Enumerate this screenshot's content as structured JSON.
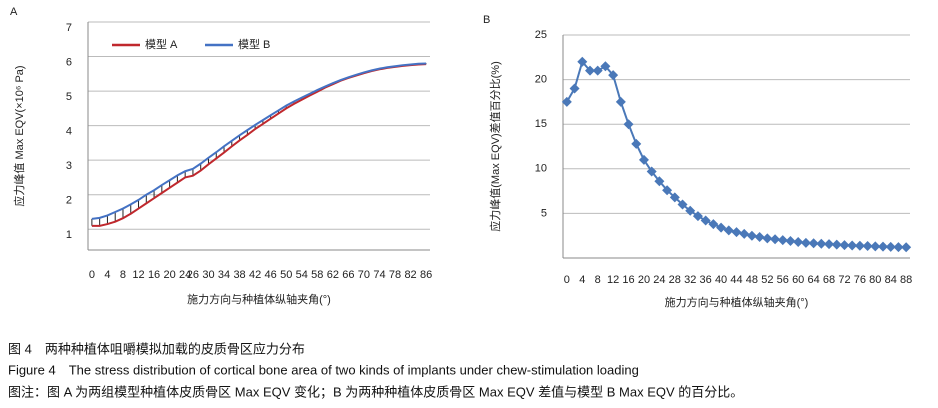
{
  "chart_data": [
    {
      "type": "line",
      "label": "A",
      "x_label": "施力方向与种植体纵轴夹角(°)",
      "y_label": "应力峰值 Max EQV(×10⁶ Pa)",
      "categories": [
        "0",
        null,
        "4",
        null,
        "8",
        null,
        "12",
        null,
        "16",
        null,
        "20",
        null,
        "24",
        "26",
        null,
        "30",
        null,
        "34",
        null,
        "38",
        null,
        "42",
        null,
        "46",
        null,
        "50",
        null,
        "54",
        null,
        "58",
        null,
        "62",
        null,
        "66",
        null,
        "70",
        null,
        "74",
        null,
        "78",
        null,
        "82",
        null,
        "86"
      ],
      "series": [
        {
          "name": "模型 A",
          "color": "#c0282d",
          "values": [
            1.1,
            1.1,
            1.15,
            1.22,
            1.32,
            1.45,
            1.6,
            1.75,
            1.9,
            2.05,
            2.2,
            2.35,
            2.5,
            2.55,
            2.7,
            2.88,
            3.05,
            3.22,
            3.4,
            3.57,
            3.73,
            3.9,
            4.05,
            4.2,
            4.35,
            4.5,
            4.63,
            4.75,
            4.87,
            4.98,
            5.1,
            5.2,
            5.3,
            5.38,
            5.45,
            5.52,
            5.58,
            5.63,
            5.67,
            5.7,
            5.73,
            5.75,
            5.77,
            5.78
          ]
        },
        {
          "name": "模型 B",
          "color": "#4472c4",
          "values": [
            1.3,
            1.33,
            1.4,
            1.5,
            1.6,
            1.72,
            1.85,
            2.0,
            2.13,
            2.28,
            2.42,
            2.56,
            2.68,
            2.75,
            2.9,
            3.07,
            3.23,
            3.4,
            3.56,
            3.72,
            3.87,
            4.02,
            4.16,
            4.3,
            4.44,
            4.58,
            4.7,
            4.81,
            4.92,
            5.03,
            5.13,
            5.23,
            5.32,
            5.4,
            5.47,
            5.54,
            5.6,
            5.65,
            5.69,
            5.72,
            5.75,
            5.77,
            5.79,
            5.8
          ]
        }
      ],
      "ylim": [
        0.4,
        7
      ],
      "yticks": [
        1,
        2,
        3,
        4,
        5,
        6,
        7
      ],
      "grid": true,
      "legend": "top-left",
      "hatch": true
    },
    {
      "type": "line",
      "label": "B",
      "x_label": "施力方向与种植体纵轴夹角(°)",
      "y_label": "应力峰值(Max EQV)差值百分比(%)",
      "categories": [
        "0",
        null,
        "4",
        null,
        "8",
        null,
        "12",
        null,
        "16",
        null,
        "20",
        null,
        "24",
        null,
        "28",
        null,
        "32",
        null,
        "36",
        null,
        "40",
        null,
        "44",
        null,
        "48",
        null,
        "52",
        null,
        "56",
        null,
        "60",
        null,
        "64",
        null,
        "68",
        null,
        "72",
        null,
        "76",
        null,
        "80",
        null,
        "84",
        null,
        "88"
      ],
      "series": [
        {
          "color": "#4a78b8",
          "marker": "diamond",
          "values": [
            17.5,
            19,
            22,
            21,
            21,
            21.5,
            20.5,
            17.5,
            15,
            12.8,
            11,
            9.7,
            8.6,
            7.6,
            6.8,
            6.0,
            5.3,
            4.7,
            4.2,
            3.8,
            3.4,
            3.1,
            2.9,
            2.7,
            2.5,
            2.35,
            2.2,
            2.1,
            2.0,
            1.9,
            1.8,
            1.7,
            1.65,
            1.6,
            1.55,
            1.5,
            1.45,
            1.4,
            1.38,
            1.35,
            1.3,
            1.28,
            1.25,
            1.22,
            1.2
          ]
        }
      ],
      "ylim": [
        0,
        25
      ],
      "yticks": [
        5,
        10,
        15,
        20,
        25
      ],
      "grid": true
    }
  ],
  "caption": {
    "title_cn": "图 4　两种种植体咀嚼模拟加载的皮质骨区应力分布",
    "title_en": "Figure 4　The stress distribution of cortical bone area of two kinds of implants under chew-stimulation loading",
    "note": "图注：图 A 为两组模型种植体皮质骨区 Max EQV 变化；B 为两种种植体皮质骨区 Max EQV 差值与模型 B Max EQV 的百分比。"
  }
}
